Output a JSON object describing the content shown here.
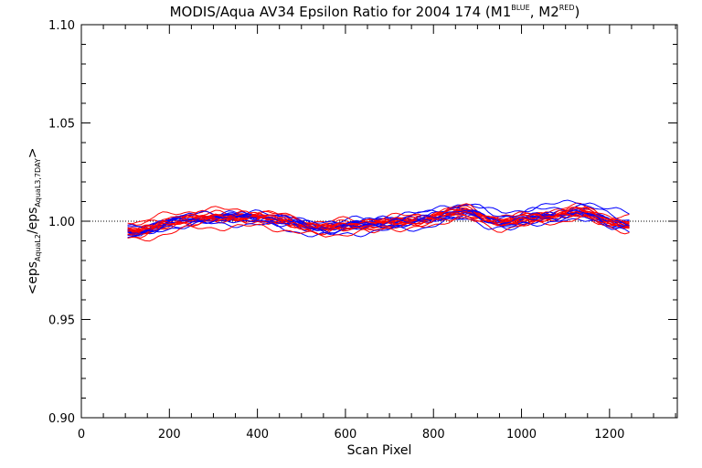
{
  "chart_data": {
    "type": "line",
    "title": {
      "main": "MODIS/Aqua AV34 Epsilon Ratio for 2004 174 (M1",
      "sup1": "BLUE",
      "mid": ", M2",
      "sup2": "RED",
      "end": ")"
    },
    "xlabel": "Scan Pixel",
    "ylabel": {
      "open": "<eps",
      "sub1": "AquaL2",
      "slash": "/eps",
      "sub2": "AquaL3,7DAY",
      "close": ">"
    },
    "xlim": [
      0,
      1354
    ],
    "ylim": [
      0.9,
      1.1
    ],
    "xticks": [
      0,
      200,
      400,
      600,
      800,
      1000,
      1200
    ],
    "xtick_labels": [
      "0",
      "200",
      "400",
      "600",
      "800",
      "1000",
      "1200"
    ],
    "yticks": [
      0.9,
      0.95,
      1.0,
      1.05,
      1.1
    ],
    "ytick_labels": [
      "0.90",
      "0.95",
      "1.00",
      "1.05",
      "1.10"
    ],
    "reference_line": 1.0,
    "colors": {
      "m1": "#0000ff",
      "m2": "#ff0000",
      "axis": "#000000"
    },
    "x_range": [
      105,
      1250
    ],
    "x_step": 25,
    "mean_profile": {
      "x": [
        105,
        130,
        155,
        180,
        205,
        230,
        255,
        280,
        305,
        330,
        355,
        380,
        405,
        430,
        455,
        480,
        505,
        530,
        555,
        580,
        605,
        630,
        655,
        680,
        705,
        730,
        755,
        780,
        805,
        830,
        855,
        880,
        905,
        930,
        955,
        980,
        1005,
        1030,
        1055,
        1080,
        1105,
        1130,
        1155,
        1180,
        1205,
        1230,
        1250
      ],
      "y": [
        0.995,
        0.9945,
        0.996,
        0.998,
        0.9995,
        1.0005,
        1.001,
        1.0015,
        1.0018,
        1.002,
        1.0022,
        1.002,
        1.0018,
        1.0012,
        1.0005,
        0.9995,
        0.998,
        0.9968,
        0.9965,
        0.9972,
        0.998,
        0.9982,
        0.9985,
        0.999,
        0.9995,
        1.0,
        1.0005,
        1.001,
        1.0022,
        1.0035,
        1.0048,
        1.005,
        1.003,
        1.0005,
        0.9995,
        1.0,
        1.0012,
        1.002,
        1.0025,
        1.003,
        1.004,
        1.005,
        1.004,
        1.0015,
        0.9995,
        0.9985,
        0.998
      ]
    },
    "series": [
      {
        "color": "m2",
        "offset": 0.005,
        "mid_sag": -0.001
      },
      {
        "color": "m2",
        "offset": 0.0045,
        "mid_sag": -0.0005
      },
      {
        "color": "m1",
        "offset": 0.006,
        "mid_sag": -0.0015
      },
      {
        "color": "m1",
        "offset": 0.0035,
        "mid_sag": 0.0
      },
      {
        "color": "m2",
        "offset": 0.0025,
        "mid_sag": 0.0005
      },
      {
        "color": "m1",
        "offset": 0.002,
        "mid_sag": 0.0
      },
      {
        "color": "m2",
        "offset": 0.0015,
        "mid_sag": 0.0
      },
      {
        "color": "m1",
        "offset": 0.001,
        "mid_sag": 0.0005
      },
      {
        "color": "m2",
        "offset": 0.0008,
        "mid_sag": 0.0
      },
      {
        "color": "m2",
        "offset": 0.0004,
        "mid_sag": 0.0
      },
      {
        "color": "m1",
        "offset": 0.0002,
        "mid_sag": 0.0
      },
      {
        "color": "m2",
        "offset": 0.0,
        "mid_sag": 0.0
      },
      {
        "color": "m2",
        "offset": -0.0002,
        "mid_sag": 0.0
      },
      {
        "color": "m2",
        "offset": -0.0004,
        "mid_sag": 0.0
      },
      {
        "color": "m1",
        "offset": -0.0006,
        "mid_sag": 0.0
      },
      {
        "color": "m2",
        "offset": -0.0008,
        "mid_sag": 0.0
      },
      {
        "color": "m2",
        "offset": -0.001,
        "mid_sag": 0.0
      },
      {
        "color": "m1",
        "offset": -0.0013,
        "mid_sag": -0.0005
      },
      {
        "color": "m2",
        "offset": -0.0016,
        "mid_sag": 0.0
      },
      {
        "color": "m1",
        "offset": -0.002,
        "mid_sag": 0.0
      },
      {
        "color": "m2",
        "offset": -0.0025,
        "mid_sag": -0.0005
      },
      {
        "color": "m1",
        "offset": -0.003,
        "mid_sag": 0.0
      },
      {
        "color": "m2",
        "offset": -0.0035,
        "mid_sag": 0.0005
      },
      {
        "color": "m1",
        "offset": -0.0042,
        "mid_sag": 0.0
      },
      {
        "color": "m2",
        "offset": -0.005,
        "mid_sag": 0.0005
      }
    ]
  }
}
